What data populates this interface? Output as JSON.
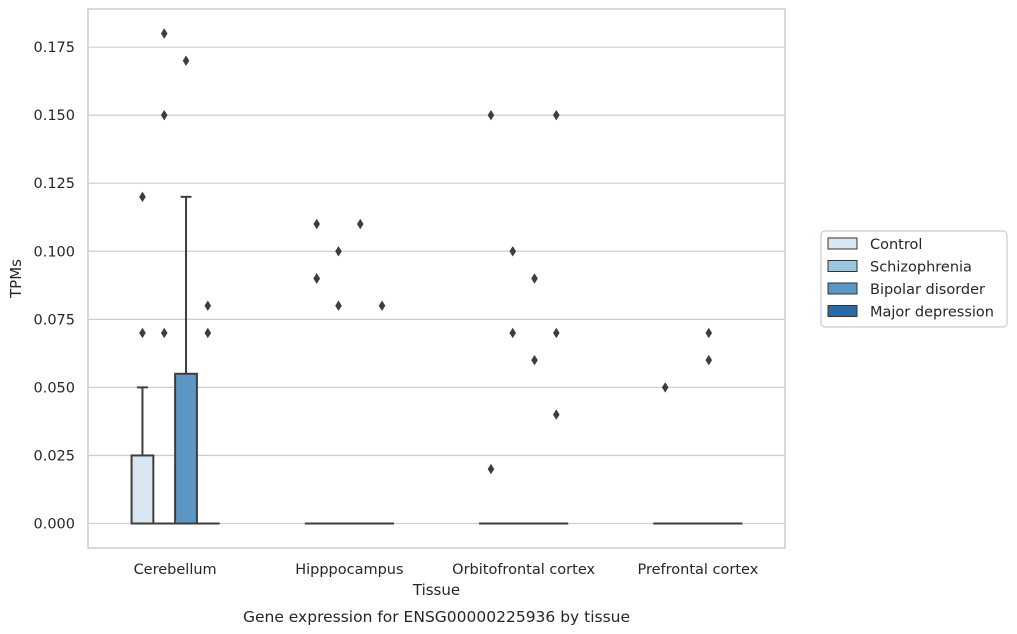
{
  "chart_data": {
    "type": "box",
    "title": "",
    "caption": "Gene expression for ENSG00000225936 by tissue",
    "xlabel": "Tissue",
    "ylabel": "TPMs",
    "ylim": [
      -0.009,
      0.189
    ],
    "yticks": [
      0.0,
      0.025,
      0.05,
      0.075,
      0.1,
      0.125,
      0.15,
      0.175
    ],
    "ytick_labels": [
      "0.000",
      "0.025",
      "0.050",
      "0.075",
      "0.100",
      "0.125",
      "0.150",
      "0.175"
    ],
    "grid": "horizontal",
    "legend_position": "right",
    "categories": [
      "Cerebellum",
      "Hipppocampus",
      "Orbitofrontal cortex",
      "Prefrontal cortex"
    ],
    "series": [
      {
        "name": "Control",
        "color": "#d8e6f2",
        "boxes": [
          {
            "q1": 0,
            "median": 0,
            "q3": 0.025,
            "whisker_low": 0,
            "whisker_high": 0.05,
            "outliers": [
              0.07,
              0.12
            ]
          },
          {
            "q1": 0,
            "median": 0,
            "q3": 0,
            "whisker_low": 0,
            "whisker_high": 0,
            "outliers": [
              0.09,
              0.09,
              0.11
            ]
          },
          {
            "q1": 0,
            "median": 0,
            "q3": 0,
            "whisker_low": 0,
            "whisker_high": 0,
            "outliers": [
              0.02,
              0.15
            ]
          },
          {
            "q1": 0,
            "median": 0,
            "q3": 0,
            "whisker_low": 0,
            "whisker_high": 0,
            "outliers": [
              0.05
            ]
          }
        ]
      },
      {
        "name": "Schizophrenia",
        "color": "#9cc4de",
        "boxes": [
          {
            "q1": 0,
            "median": 0,
            "q3": 0,
            "whisker_low": 0,
            "whisker_high": 0,
            "outliers": [
              0.07,
              0.15,
              0.18
            ]
          },
          {
            "q1": 0,
            "median": 0,
            "q3": 0,
            "whisker_low": 0,
            "whisker_high": 0,
            "outliers": [
              0.08,
              0.1
            ]
          },
          {
            "q1": 0,
            "median": 0,
            "q3": 0,
            "whisker_low": 0,
            "whisker_high": 0,
            "outliers": [
              0.07,
              0.1
            ]
          },
          {
            "q1": 0,
            "median": 0,
            "q3": 0,
            "whisker_low": 0,
            "whisker_high": 0,
            "outliers": []
          }
        ]
      },
      {
        "name": "Bipolar disorder",
        "color": "#5b97c4",
        "boxes": [
          {
            "q1": 0,
            "median": 0,
            "q3": 0.055,
            "whisker_low": 0,
            "whisker_high": 0.12,
            "outliers": [
              0.17
            ]
          },
          {
            "q1": 0,
            "median": 0,
            "q3": 0,
            "whisker_low": 0,
            "whisker_high": 0,
            "outliers": [
              0.11
            ]
          },
          {
            "q1": 0,
            "median": 0,
            "q3": 0,
            "whisker_low": 0,
            "whisker_high": 0,
            "outliers": [
              0.06,
              0.09
            ]
          },
          {
            "q1": 0,
            "median": 0,
            "q3": 0,
            "whisker_low": 0,
            "whisker_high": 0,
            "outliers": [
              0.06,
              0.07
            ]
          }
        ]
      },
      {
        "name": "Major depression",
        "color": "#2b6aa6",
        "boxes": [
          {
            "q1": 0,
            "median": 0,
            "q3": 0,
            "whisker_low": 0,
            "whisker_high": 0,
            "outliers": [
              0.07,
              0.08
            ]
          },
          {
            "q1": 0,
            "median": 0,
            "q3": 0,
            "whisker_low": 0,
            "whisker_high": 0,
            "outliers": [
              0.08
            ]
          },
          {
            "q1": 0,
            "median": 0,
            "q3": 0,
            "whisker_low": 0,
            "whisker_high": 0,
            "outliers": [
              0.04,
              0.07,
              0.15
            ]
          },
          {
            "q1": 0,
            "median": 0,
            "q3": 0,
            "whisker_low": 0,
            "whisker_high": 0,
            "outliers": []
          }
        ]
      }
    ]
  }
}
